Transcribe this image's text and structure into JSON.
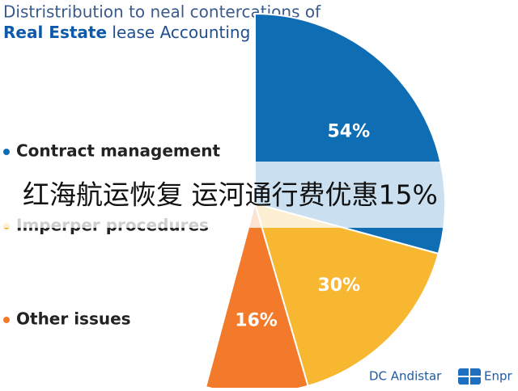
{
  "chart_data": {
    "type": "pie",
    "title": {
      "line1": "Distristribution to neal contercations of",
      "bold": "Real Estate",
      "line2": "lease Accounting issues"
    },
    "categories": [
      "Contract management",
      "Imperper procedures",
      "Other issues"
    ],
    "values": [
      54,
      30,
      16
    ],
    "value_labels": [
      "54%",
      "30%",
      "16%"
    ],
    "colors": [
      "#0f6db4",
      "#f7b731",
      "#f27a2a"
    ],
    "annotations": {
      "banner": "红海航运恢复 运河通行费优惠15%",
      "footer": "DC Andistar",
      "brand": "Enpr"
    }
  }
}
